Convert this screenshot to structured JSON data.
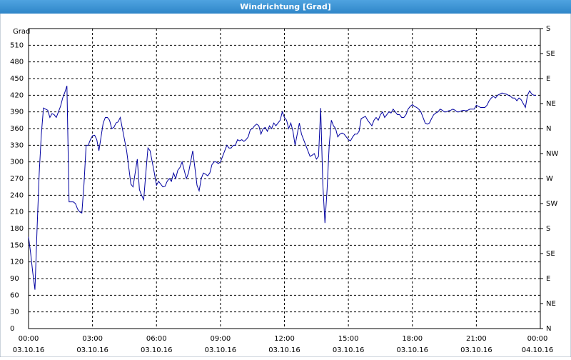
{
  "chart_data": {
    "type": "line",
    "title": "Windrichtung [Grad]",
    "y_label": "Grad",
    "color": "#0000a0",
    "grid": true,
    "x": [
      0,
      0.1,
      0.2,
      0.3,
      0.4,
      0.5,
      0.6,
      0.7,
      0.8,
      0.9,
      1,
      1.1,
      1.2,
      1.3,
      1.4,
      1.5,
      1.6,
      1.7,
      1.8,
      1.9,
      2,
      2.1,
      2.2,
      2.3,
      2.4,
      2.5,
      2.6,
      2.7,
      2.8,
      2.9,
      3,
      3.1,
      3.2,
      3.3,
      3.4,
      3.5,
      3.6,
      3.7,
      3.8,
      3.9,
      4,
      4.1,
      4.2,
      4.3,
      4.4,
      4.5,
      4.6,
      4.7,
      4.8,
      4.9,
      5,
      5.1,
      5.2,
      5.3,
      5.4,
      5.5,
      5.6,
      5.7,
      5.8,
      5.9,
      6,
      6.1,
      6.2,
      6.3,
      6.4,
      6.5,
      6.6,
      6.7,
      6.8,
      6.9,
      7,
      7.1,
      7.2,
      7.3,
      7.4,
      7.5,
      7.6,
      7.7,
      7.8,
      7.9,
      8,
      8.1,
      8.2,
      8.3,
      8.4,
      8.5,
      8.6,
      8.7,
      8.8,
      8.9,
      9,
      9.1,
      9.2,
      9.3,
      9.4,
      9.5,
      9.6,
      9.7,
      9.8,
      9.9,
      10,
      10.1,
      10.2,
      10.3,
      10.4,
      10.5,
      10.6,
      10.7,
      10.8,
      10.9,
      11,
      11.1,
      11.2,
      11.3,
      11.4,
      11.5,
      11.6,
      11.7,
      11.8,
      11.9,
      12,
      12.1,
      12.2,
      12.3,
      12.4,
      12.5,
      12.6,
      12.7,
      12.8,
      12.9,
      13,
      13.1,
      13.2,
      13.3,
      13.4,
      13.5,
      13.6,
      13.7,
      13.8,
      13.9,
      14,
      14.1,
      14.2,
      14.3,
      14.4,
      14.5,
      14.6,
      14.7,
      14.8,
      14.9,
      15,
      15.1,
      15.2,
      15.3,
      15.4,
      15.5,
      15.6,
      15.7,
      15.8,
      15.9,
      16,
      16.1,
      16.2,
      16.3,
      16.4,
      16.5,
      16.6,
      16.7,
      16.8,
      16.9,
      17,
      17.1,
      17.2,
      17.3,
      17.4,
      17.5,
      17.6,
      17.7,
      17.8,
      17.9,
      18,
      18.1,
      18.2,
      18.3,
      18.4,
      18.5,
      18.6,
      18.7,
      18.8,
      18.9,
      19,
      19.1,
      19.2,
      19.3,
      19.4,
      19.5,
      19.6,
      19.7,
      19.8,
      19.9,
      20,
      20.1,
      20.2,
      20.3,
      20.4,
      20.5,
      20.6,
      20.7,
      20.8,
      20.9,
      21,
      21.1,
      21.2,
      21.3,
      21.4,
      21.5,
      21.6,
      21.7,
      21.8,
      21.9,
      22,
      22.1,
      22.2,
      22.3,
      22.4,
      22.5,
      22.6,
      22.7,
      22.8,
      22.9,
      23,
      23.1,
      23.2,
      23.3,
      23.4,
      23.5,
      23.6,
      23.7,
      23.8
    ],
    "values": [
      165,
      135,
      100,
      70,
      180,
      280,
      350,
      397,
      395,
      393,
      380,
      387,
      385,
      380,
      390,
      400,
      415,
      425,
      437,
      228,
      228,
      228,
      225,
      215,
      210,
      208,
      260,
      330,
      330,
      340,
      347,
      348,
      340,
      320,
      345,
      370,
      380,
      380,
      375,
      360,
      362,
      370,
      372,
      380,
      360,
      340,
      320,
      290,
      260,
      255,
      280,
      305,
      250,
      240,
      232,
      280,
      325,
      320,
      300,
      280,
      258,
      265,
      260,
      255,
      256,
      265,
      270,
      265,
      280,
      270,
      285,
      290,
      300,
      285,
      270,
      280,
      300,
      320,
      290,
      258,
      248,
      270,
      280,
      278,
      275,
      280,
      295,
      300,
      300,
      297,
      300,
      310,
      320,
      330,
      325,
      325,
      330,
      330,
      340,
      338,
      340,
      337,
      340,
      345,
      358,
      360,
      365,
      368,
      365,
      350,
      360,
      362,
      355,
      365,
      360,
      370,
      365,
      370,
      375,
      390,
      380,
      375,
      360,
      370,
      355,
      330,
      350,
      370,
      350,
      340,
      330,
      320,
      310,
      312,
      315,
      305,
      310,
      397,
      260,
      190,
      250,
      330,
      375,
      365,
      360,
      345,
      350,
      352,
      350,
      345,
      340,
      338,
      345,
      350,
      350,
      355,
      378,
      380,
      382,
      375,
      370,
      365,
      375,
      380,
      375,
      385,
      390,
      380,
      385,
      390,
      388,
      395,
      390,
      385,
      385,
      380,
      380,
      385,
      395,
      400,
      403,
      400,
      398,
      395,
      390,
      380,
      370,
      368,
      370,
      378,
      385,
      388,
      390,
      395,
      393,
      390,
      390,
      392,
      393,
      395,
      393,
      390,
      390,
      392,
      393,
      392,
      393,
      395,
      395,
      395,
      402,
      400,
      398,
      398,
      398,
      402,
      410,
      415,
      418,
      415,
      420,
      422,
      424,
      423,
      422,
      420,
      418,
      415,
      415,
      410,
      415,
      412,
      405,
      398,
      420,
      428,
      422,
      420,
      420
    ],
    "xlim": [
      0,
      24
    ],
    "xticks": [
      {
        "value": 0,
        "label": "00:00",
        "date": "03.10.16"
      },
      {
        "value": 3,
        "label": "03:00",
        "date": "03.10.16"
      },
      {
        "value": 6,
        "label": "06:00",
        "date": "03.10.16"
      },
      {
        "value": 9,
        "label": "09:00",
        "date": "03.10.16"
      },
      {
        "value": 12,
        "label": "12:00",
        "date": "03.10.16"
      },
      {
        "value": 15,
        "label": "15:00",
        "date": "03.10.16"
      },
      {
        "value": 18,
        "label": "18:00",
        "date": "03.10.16"
      },
      {
        "value": 21,
        "label": "21:00",
        "date": "03.10.16"
      },
      {
        "value": 24,
        "label": "00:00",
        "date": "04.10.16"
      }
    ],
    "ylim": [
      0,
      540
    ],
    "yticks": [
      0,
      30,
      60,
      90,
      120,
      150,
      180,
      210,
      240,
      270,
      300,
      330,
      360,
      390,
      420,
      450,
      480,
      510
    ],
    "y2lim": [
      0,
      540
    ],
    "y2ticks": [
      {
        "value": 0,
        "label": "N"
      },
      {
        "value": 45,
        "label": "NE"
      },
      {
        "value": 90,
        "label": "E"
      },
      {
        "value": 135,
        "label": "SE"
      },
      {
        "value": 180,
        "label": "S"
      },
      {
        "value": 225,
        "label": "SW"
      },
      {
        "value": 270,
        "label": "W"
      },
      {
        "value": 315,
        "label": "NW"
      },
      {
        "value": 360,
        "label": "N"
      },
      {
        "value": 405,
        "label": "NE"
      },
      {
        "value": 450,
        "label": "E"
      },
      {
        "value": 495,
        "label": "SE"
      },
      {
        "value": 540,
        "label": "S"
      }
    ]
  }
}
